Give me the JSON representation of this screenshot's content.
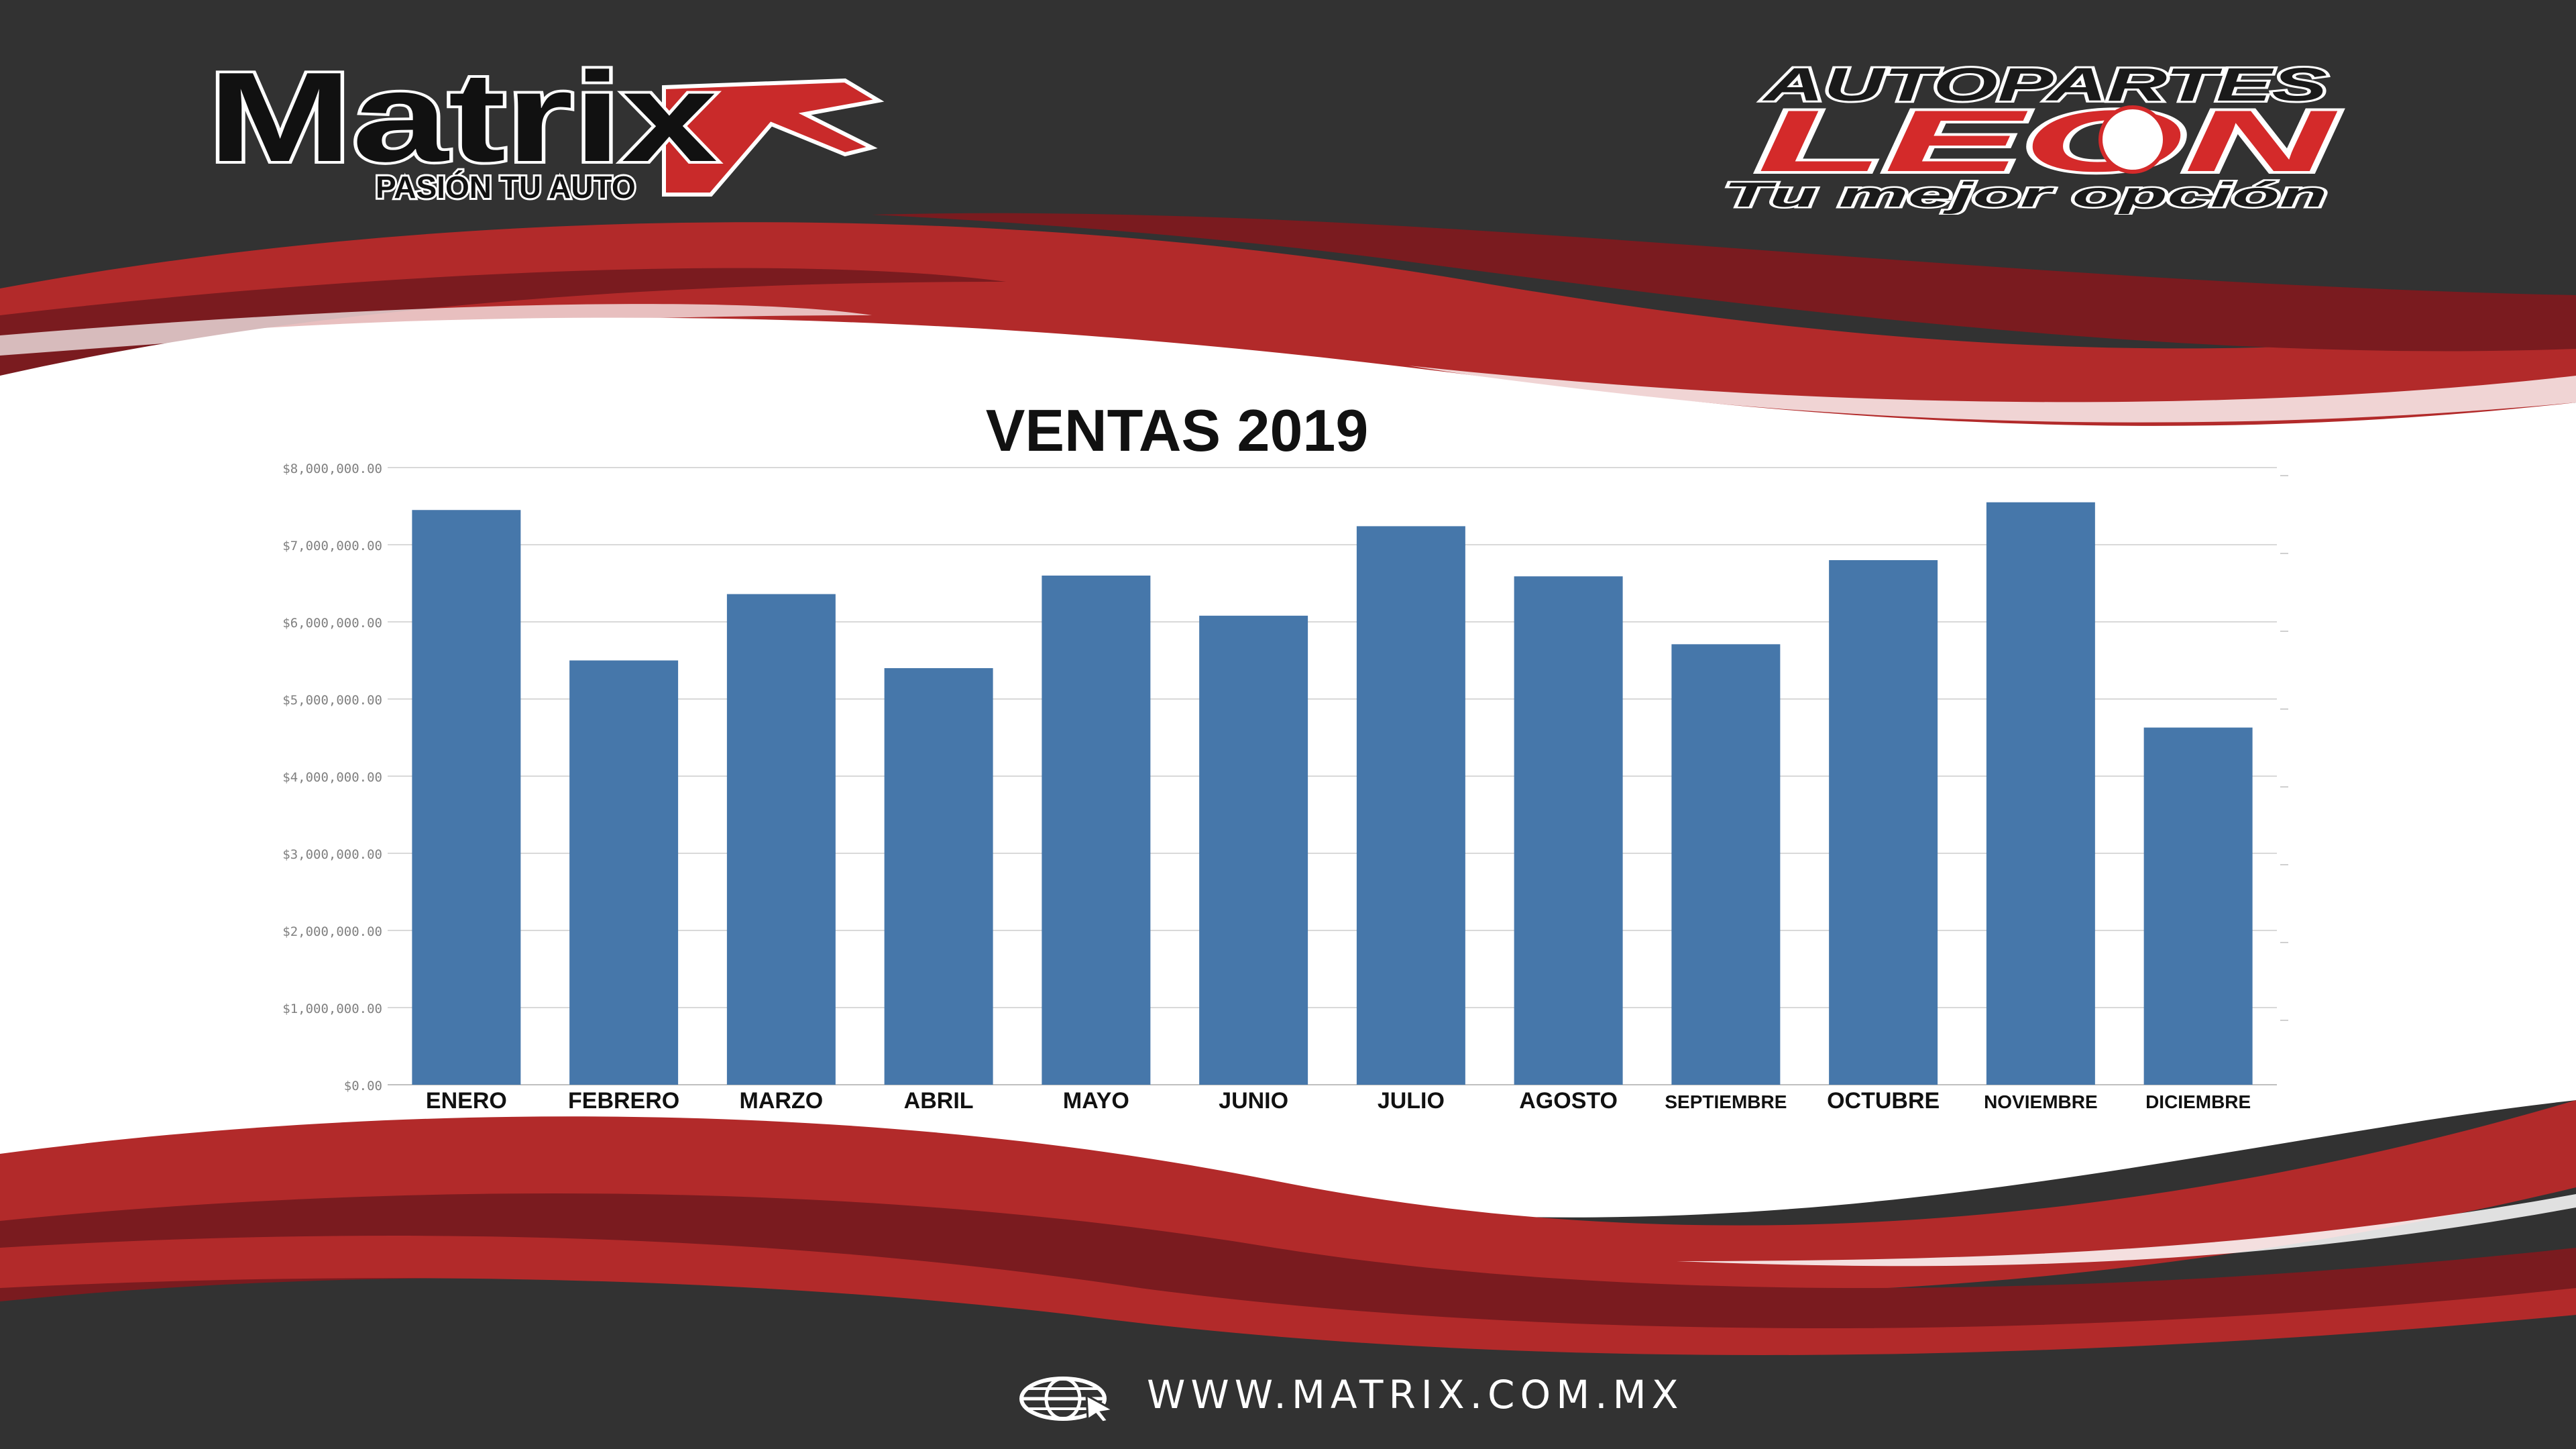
{
  "brand_left": {
    "name": "Matrix",
    "wordmark": "Matrix",
    "tagline": "PASIÓN TU AUTO"
  },
  "brand_right": {
    "line1": "AUTOPARTES",
    "line2": "LEON",
    "tagline": "Tu mejor opción"
  },
  "footer": {
    "website": "WWW.MATRIX.COM.MX",
    "icon": "globe-cursor-icon"
  },
  "colors": {
    "background_dark": "#323232",
    "wave_red": "#b22a2a",
    "wave_dark_red": "#7a1b1f",
    "bar": "#4677aa",
    "title": "#111111"
  },
  "chart_data": {
    "type": "bar",
    "title": "VENTAS 2019",
    "categories": [
      "ENERO",
      "FEBRERO",
      "MARZO",
      "ABRIL",
      "MAYO",
      "JUNIO",
      "JULIO",
      "AGOSTO",
      "SEPTIEMBRE",
      "OCTUBRE",
      "NOVIEMBRE",
      "DICIEMBRE"
    ],
    "values": [
      7450000,
      5500000,
      6360000,
      5400000,
      6600000,
      6080000,
      7240000,
      6590000,
      5710000,
      6800000,
      7550000,
      4630000
    ],
    "ylim": [
      0,
      8000000
    ],
    "yticks": [
      {
        "value": 0,
        "label": "$0.00"
      },
      {
        "value": 1000000,
        "label": "$1,000,000.00"
      },
      {
        "value": 2000000,
        "label": "$2,000,000.00"
      },
      {
        "value": 3000000,
        "label": "$3,000,000.00"
      },
      {
        "value": 4000000,
        "label": "$4,000,000.00"
      },
      {
        "value": 5000000,
        "label": "$5,000,000.00"
      },
      {
        "value": 6000000,
        "label": "$6,000,000.00"
      },
      {
        "value": 7000000,
        "label": "$7,000,000.00"
      },
      {
        "value": 8000000,
        "label": "$8,000,000.00"
      }
    ],
    "grid": true,
    "legend": "none",
    "xlabel": "",
    "ylabel": ""
  }
}
